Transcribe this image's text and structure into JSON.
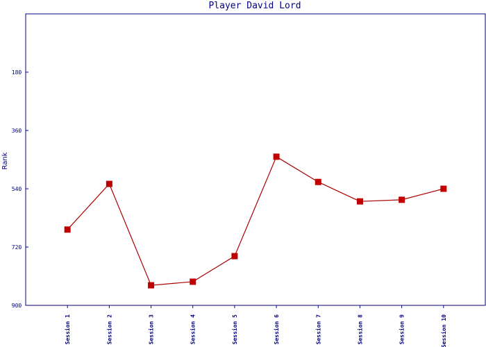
{
  "chart_data": {
    "type": "line",
    "title": "Player David Lord",
    "y_label": "Rank",
    "categories": [
      "Session 1",
      "Session 2",
      "Session 3",
      "Session 4",
      "Session 5",
      "Session 6",
      "Session 7",
      "Session 8",
      "Session 9",
      "Session 10"
    ],
    "series": [
      {
        "name": "Rank",
        "color": "#aa0000",
        "values": [
          666,
          525,
          838,
          827,
          748,
          441,
          519,
          579,
          574,
          540
        ]
      }
    ],
    "ylim": [
      900,
      0
    ],
    "yticks": [
      180,
      360,
      540,
      720,
      900
    ]
  }
}
